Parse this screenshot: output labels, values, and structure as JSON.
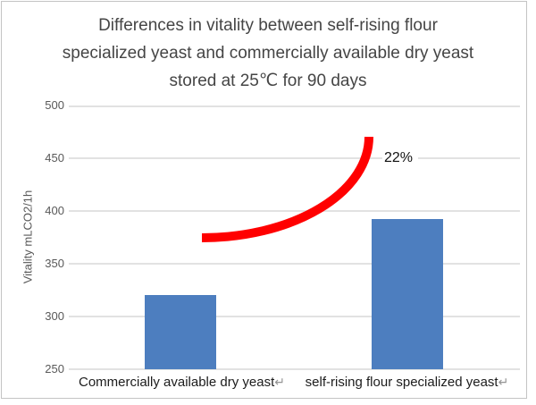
{
  "title": {
    "line1": "Differences in vitality between self-rising flour",
    "line2": "specialized yeast and commercially available dry yeast",
    "line3": "stored at 25℃ for 90 days"
  },
  "y_axis": {
    "label": "Vitality mLCO2/1h",
    "ticks": [
      "500",
      "450",
      "400",
      "350",
      "300",
      "250"
    ]
  },
  "categories": [
    {
      "label": "Commercially available dry yeast",
      "return_mark": "↵"
    },
    {
      "label": "self-rising flour specialized yeast",
      "return_mark": "↵"
    }
  ],
  "annotation": {
    "text": "22%"
  },
  "colors": {
    "bar": "#4d7ebf",
    "arc": "#ff0000",
    "gridline": "#e2e2e2",
    "title_text": "#454545",
    "axis_text": "#595959"
  },
  "chart_data": {
    "type": "bar",
    "title": "Differences in vitality between self-rising flour specialized yeast and commercially available dry yeast stored at 25℃ for 90 days",
    "categories": [
      "Commercially available dry yeast",
      "self-rising flour specialized yeast"
    ],
    "values": [
      320,
      392
    ],
    "xlabel": "",
    "ylabel": "Vitality mLCO2/1h",
    "ylim": [
      250,
      500
    ],
    "ytick_interval": 50,
    "grid": true,
    "legend": false,
    "bar_color": "#4d7ebf",
    "annotations": [
      {
        "text": "22%",
        "meaning": "percent increase from first bar to second bar",
        "shape": "thick red upward-curving arc from above bar 1 to above bar 2",
        "color": "#ff0000"
      }
    ]
  }
}
